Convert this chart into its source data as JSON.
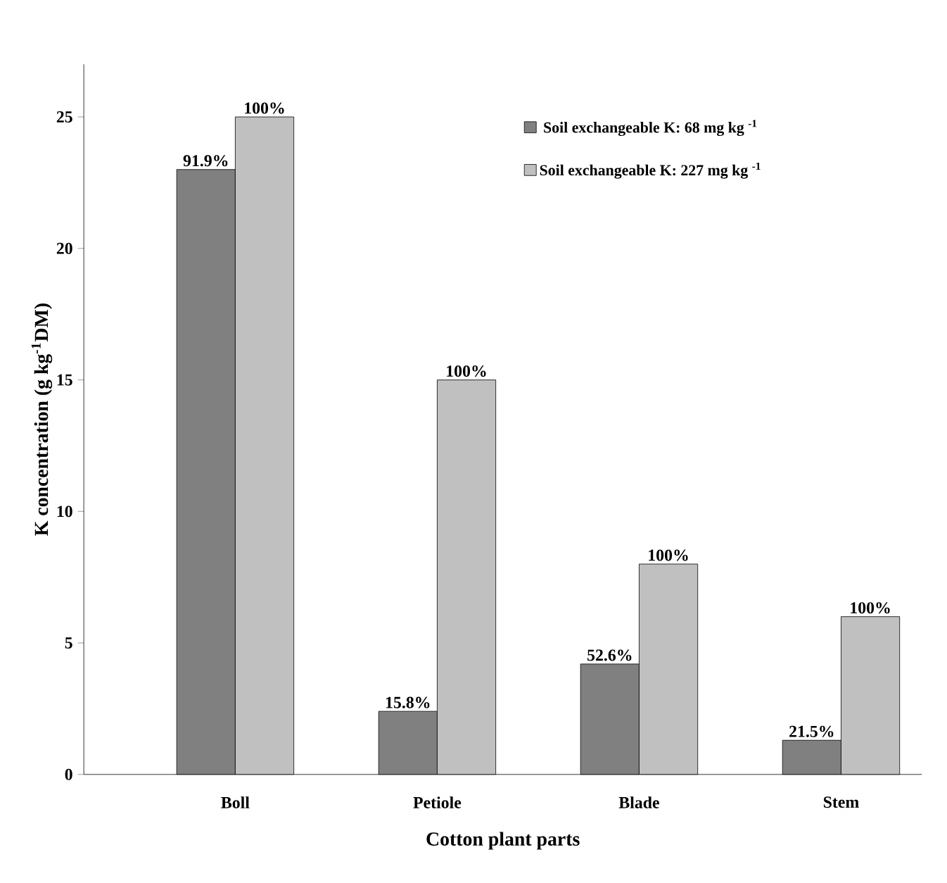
{
  "chart_data": {
    "type": "bar",
    "xlabel": "Cotton plant parts",
    "ylabel": "K concentration (g kg$^{-1}$DM)",
    "categories": [
      "Boll",
      "Petiole",
      "Blade",
      "Stem"
    ],
    "series": [
      {
        "name": "Soil exchangeable K:  68 mg kg $^{-1}$",
        "color": "#808080",
        "values": [
          23,
          2.4,
          4.2,
          1.3
        ]
      },
      {
        "name": "Soil exchangeable K: 227 mg kg $^{-1}$",
        "color": "#c0c0c0",
        "values": [
          25,
          15,
          8,
          6
        ]
      }
    ],
    "annotations": [
      {
        "text": "91.9%",
        "x": "Boll",
        "y": 23
      },
      {
        "text": "15.8%",
        "x": "Petiole",
        "y": 2.4
      },
      {
        "text": "52.6%",
        "x": "Blade",
        "y": 4.2
      },
      {
        "text": "21.5%",
        "x": "Stem",
        "y": 1.3
      },
      {
        "text": "100%",
        "x": "Boll",
        "y": 25
      },
      {
        "text": "100%",
        "x": "Petiole",
        "y": 15
      },
      {
        "text": "100%",
        "x": "Blade",
        "y": 8
      },
      {
        "text": "100%",
        "x": "Stem",
        "y": 6
      }
    ],
    "ylim": [
      0,
      27
    ],
    "yticks": [
      0,
      5,
      10,
      15,
      20,
      25
    ],
    "grid": false,
    "legend": "top right"
  }
}
